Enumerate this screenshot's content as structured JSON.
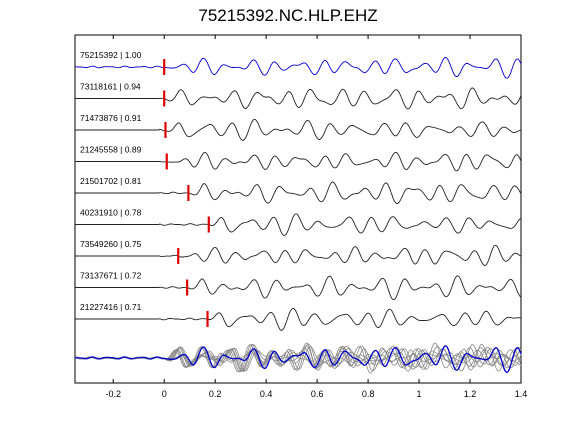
{
  "chart_data": {
    "type": "line",
    "title": "75215392.NC.HLP.EHZ",
    "xlabel": "",
    "ylabel": "",
    "xlim": [
      -0.35,
      1.4
    ],
    "x_ticks": [
      -0.2,
      0,
      0.2,
      0.4,
      0.6,
      0.8,
      1,
      1.2,
      1.4
    ],
    "x_tick_labels": [
      "-0.2",
      "0",
      "0.2",
      "0.4",
      "0.6",
      "0.8",
      "1",
      "1.2",
      "1.4"
    ],
    "grid": false,
    "colors": {
      "reference": "#0000cc",
      "trace": "#222222",
      "pick": "#dd0000",
      "stack_gray": "#888888"
    },
    "series": [
      {
        "label": "75215392 | 1.00",
        "pick_time": 0.0,
        "reference": true
      },
      {
        "label": "73118161 | 0.94",
        "pick_time": 0.0,
        "reference": false
      },
      {
        "label": "71473876 | 0.91",
        "pick_time": 0.005,
        "reference": false
      },
      {
        "label": "21245558 | 0.89",
        "pick_time": 0.01,
        "reference": false
      },
      {
        "label": "21501702 | 0.81",
        "pick_time": 0.095,
        "reference": false
      },
      {
        "label": "40231910 | 0.78",
        "pick_time": 0.175,
        "reference": false
      },
      {
        "label": "73549260 | 0.75",
        "pick_time": 0.055,
        "reference": false
      },
      {
        "label": "73137671 | 0.72",
        "pick_time": 0.09,
        "reference": false
      },
      {
        "label": "21227416 | 0.71",
        "pick_time": 0.17,
        "reference": false
      }
    ]
  }
}
